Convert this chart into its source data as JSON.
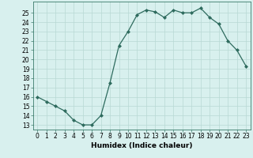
{
  "x": [
    0,
    1,
    2,
    3,
    4,
    5,
    6,
    7,
    8,
    9,
    10,
    11,
    12,
    13,
    14,
    15,
    16,
    17,
    18,
    19,
    20,
    21,
    22,
    23
  ],
  "y": [
    16,
    15.5,
    15,
    14.5,
    13.5,
    13,
    13,
    14,
    17.5,
    21.5,
    23,
    24.8,
    25.3,
    25.1,
    24.5,
    25.3,
    25,
    25,
    25.5,
    24.5,
    23.8,
    22,
    21,
    19.3
  ],
  "line_color": "#2e6b5e",
  "marker": "D",
  "marker_size": 2.0,
  "bg_color": "#d8f0ee",
  "grid_color": "#b8d8d4",
  "xlabel": "Humidex (Indice chaleur)",
  "ylabel_ticks": [
    13,
    14,
    15,
    16,
    17,
    18,
    19,
    20,
    21,
    22,
    23,
    24,
    25
  ],
  "ylim": [
    12.5,
    26.2
  ],
  "xlim": [
    -0.5,
    23.5
  ],
  "xticks": [
    0,
    1,
    2,
    3,
    4,
    5,
    6,
    7,
    8,
    9,
    10,
    11,
    12,
    13,
    14,
    15,
    16,
    17,
    18,
    19,
    20,
    21,
    22,
    23
  ],
  "xlabel_fontsize": 6.5,
  "tick_fontsize": 5.5,
  "spine_color": "#3a7a6a",
  "linewidth": 0.9
}
